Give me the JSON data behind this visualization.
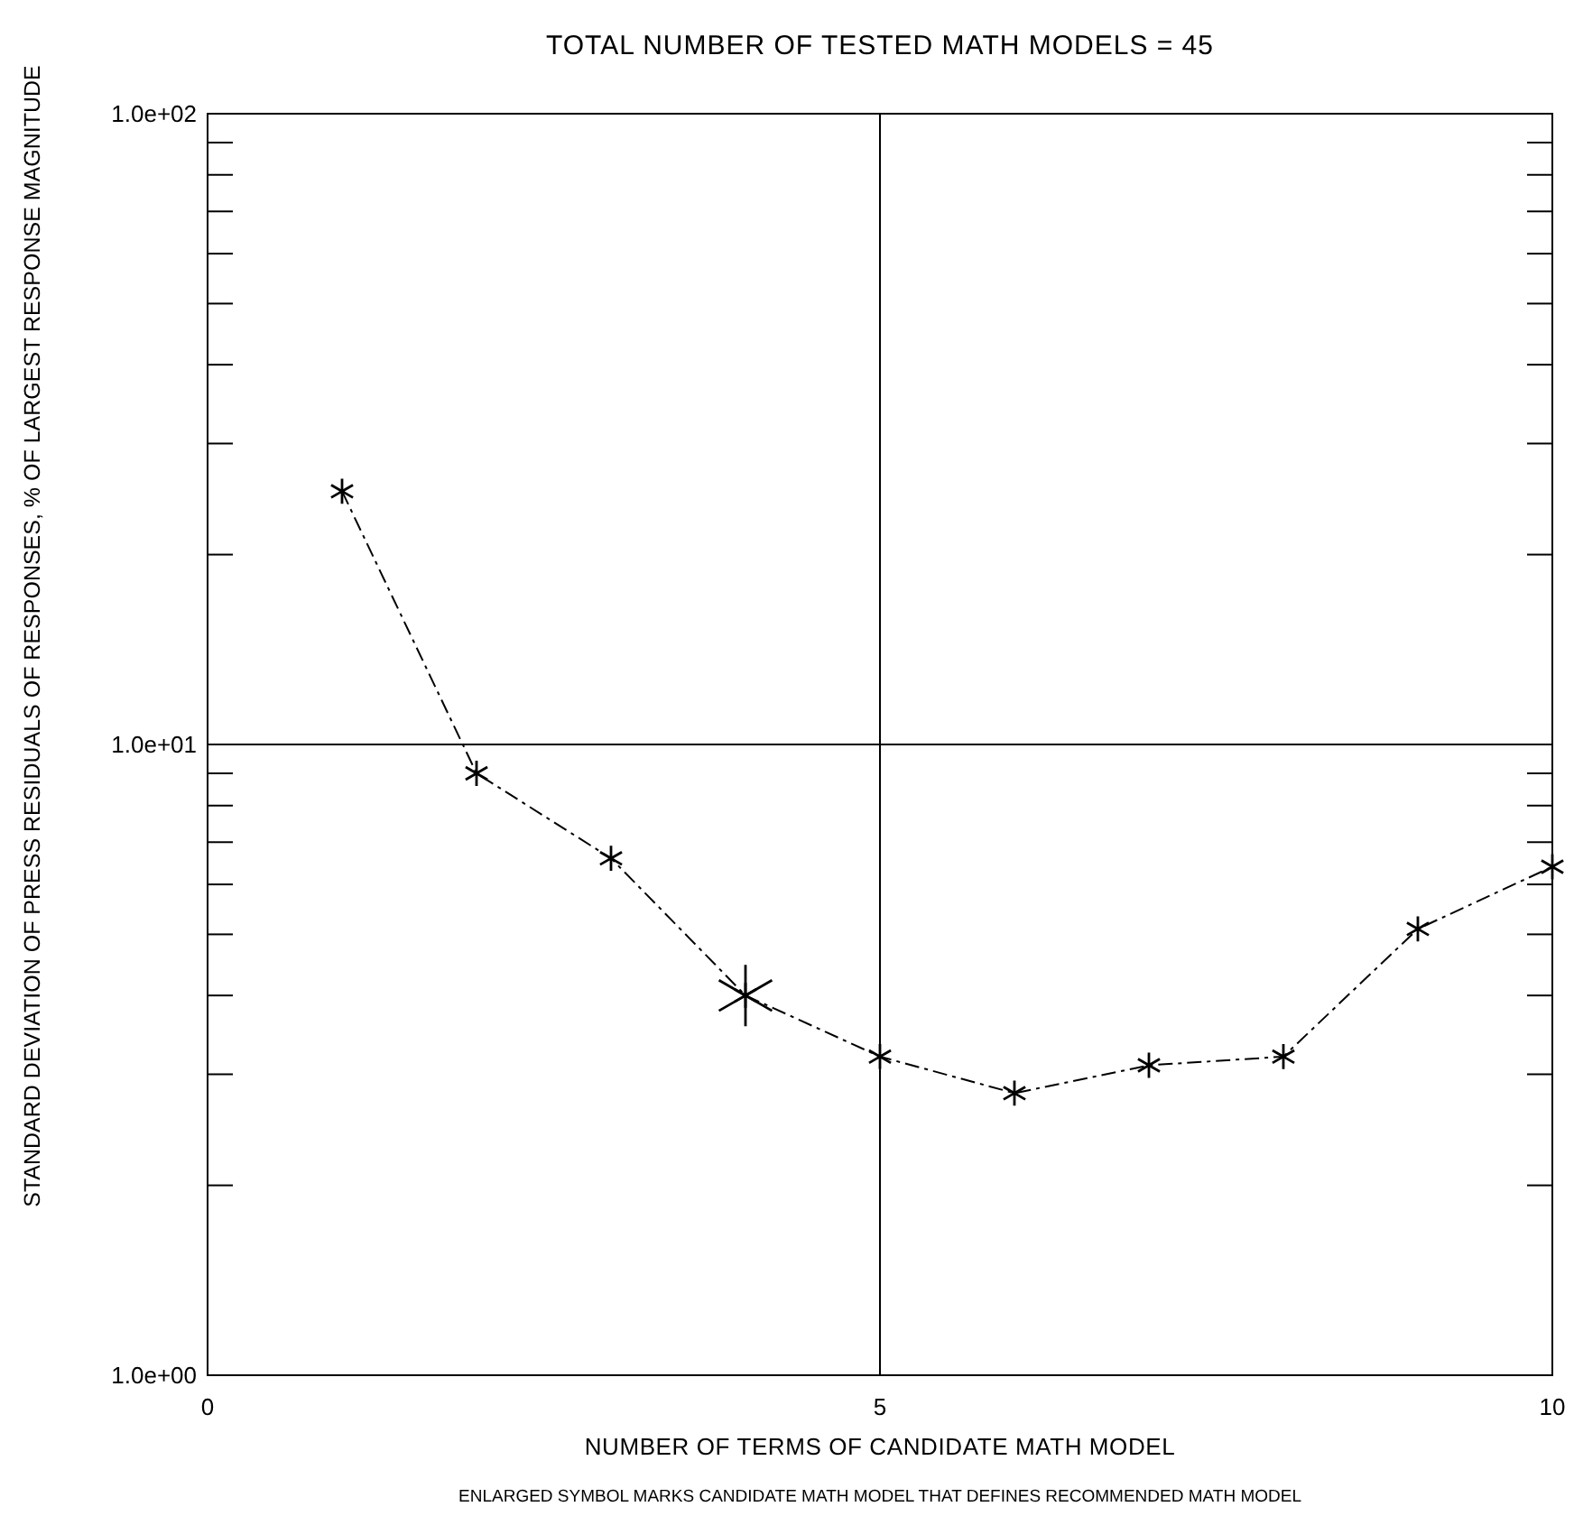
{
  "chart_data": {
    "type": "line",
    "title": "TOTAL NUMBER OF TESTED MATH MODELS = 45",
    "xlabel": "NUMBER OF TERMS OF CANDIDATE MATH MODEL",
    "ylabel": "STANDARD DEVIATION OF PRESS RESIDUALS OF RESPONSES, % OF LARGEST RESPONSE MAGNITUDE",
    "annotations": [
      "ENLARGED SYMBOL MARKS CANDIDATE MATH MODEL THAT DEFINES RECOMMENDED MATH MODEL"
    ],
    "log": "y",
    "grid": true,
    "xlim": [
      0,
      10
    ],
    "xticks": [
      0,
      5,
      10
    ],
    "ylim": [
      1,
      100
    ],
    "yticks": [
      {
        "value": 1,
        "label": "1.0e+00"
      },
      {
        "value": 2,
        "label": null
      },
      {
        "value": 3,
        "label": null
      },
      {
        "value": 4,
        "label": null
      },
      {
        "value": 5,
        "label": null
      },
      {
        "value": 6,
        "label": null
      },
      {
        "value": 7,
        "label": null
      },
      {
        "value": 8,
        "label": null
      },
      {
        "value": 9,
        "label": null
      },
      {
        "value": 10,
        "label": "1.0e+01"
      },
      {
        "value": 20,
        "label": null
      },
      {
        "value": 30,
        "label": null
      },
      {
        "value": 40,
        "label": null
      },
      {
        "value": 50,
        "label": null
      },
      {
        "value": 60,
        "label": null
      },
      {
        "value": 70,
        "label": null
      },
      {
        "value": 80,
        "label": null
      },
      {
        "value": 90,
        "label": null
      },
      {
        "value": 100,
        "label": "1.0e+02"
      }
    ],
    "series": [
      {
        "color": "#000000",
        "marker": "cross",
        "line_style": "dashed",
        "x": [
          1,
          2,
          3,
          4,
          5,
          6,
          7,
          8,
          9,
          10
        ],
        "values": [
          25.2,
          9.0,
          6.6,
          4.0,
          3.2,
          2.8,
          3.1,
          3.2,
          5.1,
          6.4
        ]
      },
      {
        "type": "scatter",
        "color": "#000000",
        "marker": "cross",
        "x": [
          4
        ],
        "values": [
          4.0
        ]
      }
    ]
  }
}
